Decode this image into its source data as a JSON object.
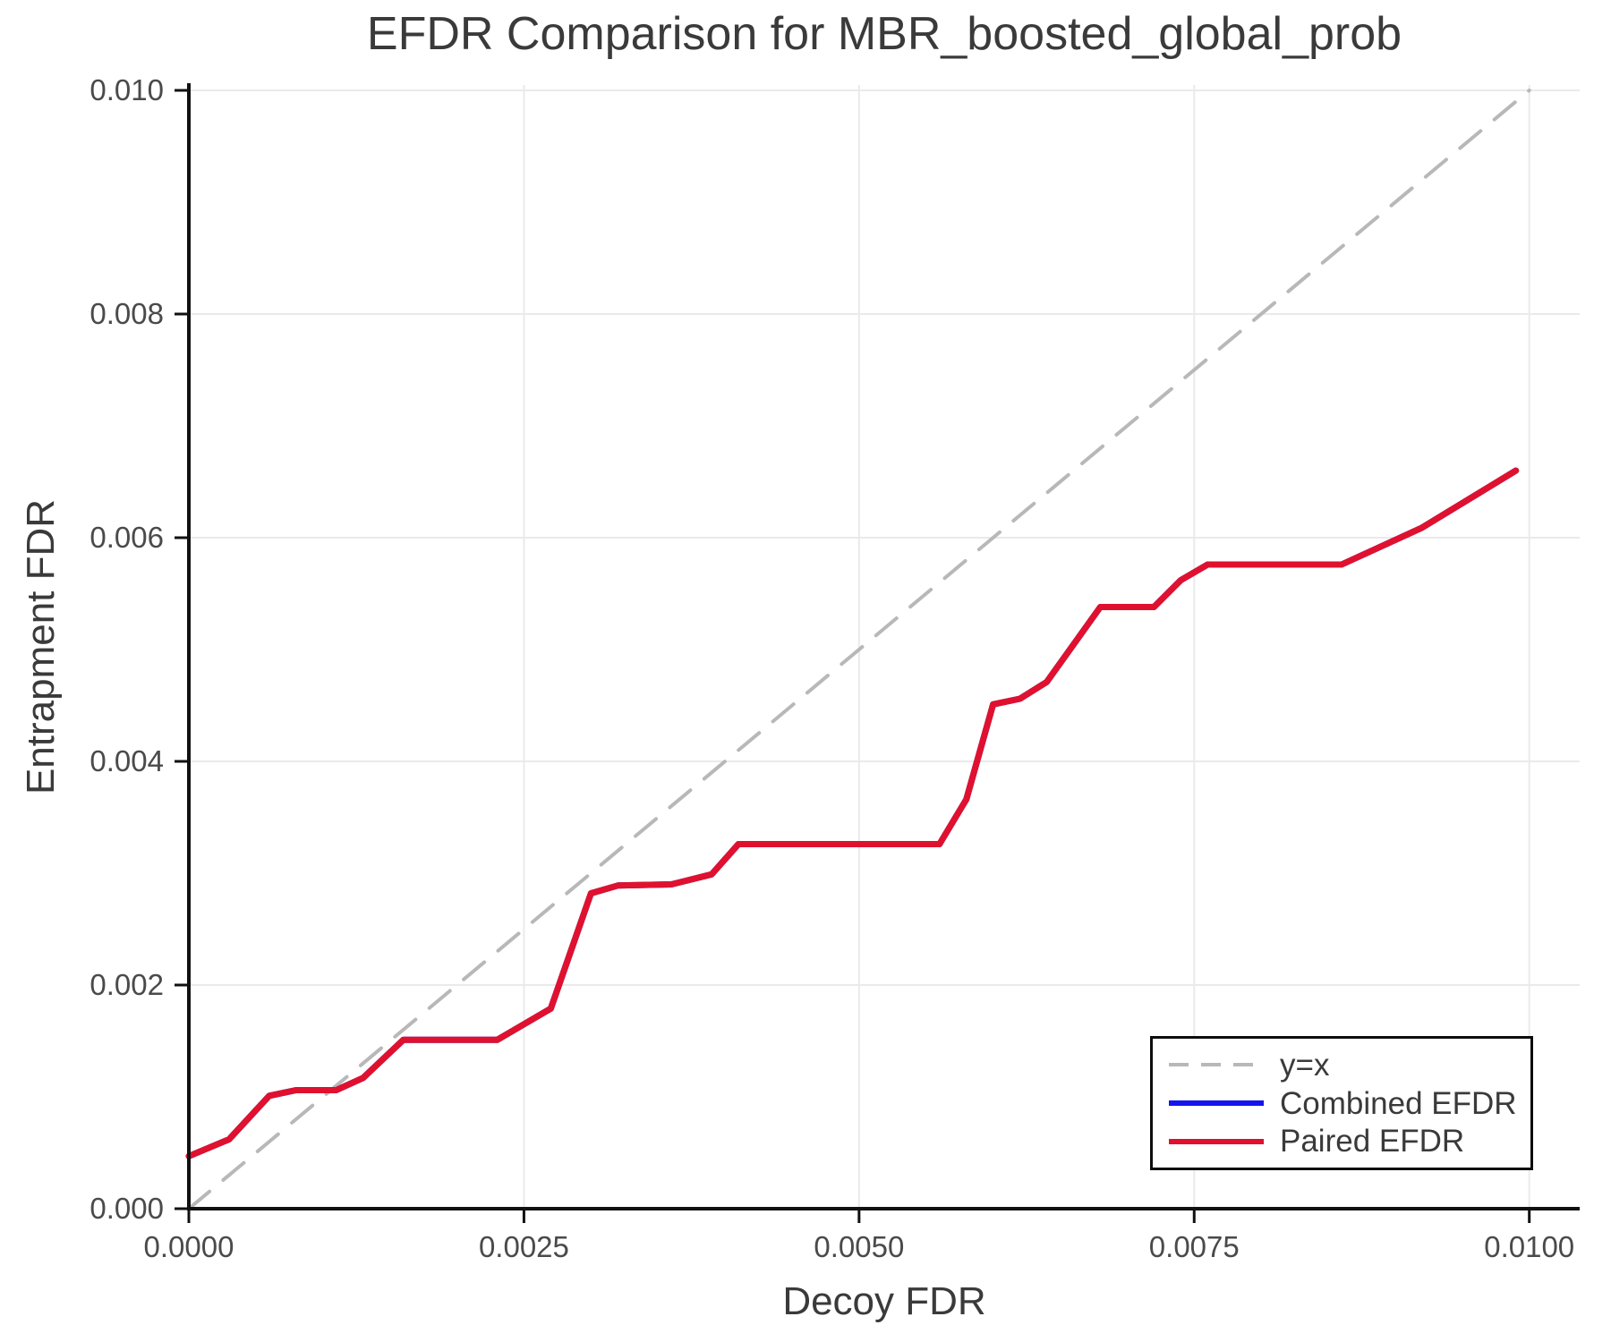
{
  "chart_data": {
    "type": "line",
    "title": "EFDR Comparison for MBR_boosted_global_prob",
    "xlabel": "Decoy FDR",
    "ylabel": "Entrapment FDR",
    "xlim": [
      0,
      0.0104
    ],
    "ylim": [
      0,
      0.01005
    ],
    "grid": true,
    "legend_position": "lower right",
    "x_ticks": [
      0.0,
      0.0025,
      0.005,
      0.0075,
      0.01
    ],
    "x_tick_labels": [
      "0.0000",
      "0.0025",
      "0.0050",
      "0.0075",
      "0.0100"
    ],
    "y_ticks": [
      0.0,
      0.002,
      0.004,
      0.006,
      0.008,
      0.01
    ],
    "y_tick_labels": [
      "0.000",
      "0.002",
      "0.004",
      "0.006",
      "0.008",
      "0.010"
    ],
    "colors": {
      "diagonal": "#b8b8b8",
      "combined": "#1414f0",
      "paired": "#e0112e",
      "grid": "#eaeaea",
      "spine": "#111111",
      "tick_text": "#4a4a4a",
      "label_text": "#3a3a3a"
    },
    "series": [
      {
        "name": "y=x",
        "style": "dashed",
        "color_key": "diagonal",
        "x": [
          0.0,
          0.01
        ],
        "y": [
          0.0,
          0.01
        ]
      },
      {
        "name": "Combined EFDR",
        "style": "solid",
        "color_key": "combined",
        "x": [
          0.0,
          0.0003,
          0.0006,
          0.0008,
          0.0011,
          0.0013,
          0.0016,
          0.0023,
          0.0027,
          0.003,
          0.0032,
          0.0036,
          0.0039,
          0.0041,
          0.0056,
          0.0058,
          0.006,
          0.0062,
          0.0064,
          0.0068,
          0.0072,
          0.0074,
          0.0076,
          0.0086,
          0.0092,
          0.0099
        ],
        "y": [
          0.00047,
          0.00062,
          0.00101,
          0.00106,
          0.00106,
          0.00117,
          0.00151,
          0.00151,
          0.00179,
          0.00282,
          0.00289,
          0.0029,
          0.00299,
          0.00326,
          0.00326,
          0.00366,
          0.00451,
          0.00456,
          0.00471,
          0.00538,
          0.00538,
          0.00562,
          0.00576,
          0.00576,
          0.00609,
          0.0066
        ]
      },
      {
        "name": "Paired EFDR",
        "style": "solid",
        "color_key": "paired",
        "x": [
          0.0,
          0.0003,
          0.0006,
          0.0008,
          0.0011,
          0.0013,
          0.0016,
          0.0023,
          0.0027,
          0.003,
          0.0032,
          0.0036,
          0.0039,
          0.0041,
          0.0056,
          0.0058,
          0.006,
          0.0062,
          0.0064,
          0.0068,
          0.0072,
          0.0074,
          0.0076,
          0.0086,
          0.0092,
          0.0099
        ],
        "y": [
          0.00047,
          0.00062,
          0.00101,
          0.00106,
          0.00106,
          0.00117,
          0.00151,
          0.00151,
          0.00179,
          0.00282,
          0.00289,
          0.0029,
          0.00299,
          0.00326,
          0.00326,
          0.00366,
          0.00451,
          0.00456,
          0.00471,
          0.00538,
          0.00538,
          0.00562,
          0.00576,
          0.00576,
          0.00609,
          0.0066
        ]
      }
    ]
  }
}
